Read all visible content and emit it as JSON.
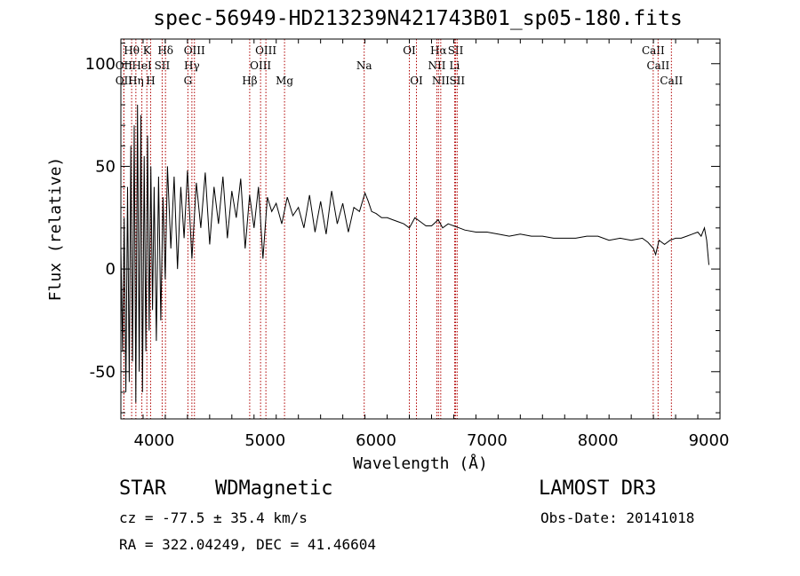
{
  "chart_data": {
    "type": "line",
    "title": "spec-56949-HD213239N421743B01_sp05-180.fits",
    "xlabel": "Wavelength (Å)",
    "ylabel": "Flux (relative)",
    "xlim": [
      3700,
      9100
    ],
    "ylim": [
      -73,
      112
    ],
    "xticks": [
      4000,
      5000,
      6000,
      7000,
      8000,
      9000
    ],
    "yticks": [
      -50,
      0,
      50,
      100
    ],
    "grid": false,
    "series": [
      {
        "x": [
          3700,
          3715,
          3730,
          3745,
          3760,
          3775,
          3790,
          3805,
          3820,
          3835,
          3850,
          3865,
          3880,
          3895,
          3910,
          3925,
          3940,
          3955,
          3970,
          3985,
          4000,
          4020,
          4040,
          4060,
          4080,
          4100,
          4120,
          4150,
          4180,
          4210,
          4240,
          4270,
          4300,
          4340,
          4380,
          4420,
          4460,
          4500,
          4540,
          4580,
          4620,
          4660,
          4700,
          4740,
          4780,
          4820,
          4860,
          4900,
          4940,
          4980,
          5020,
          5060,
          5100,
          5150,
          5200,
          5250,
          5300,
          5350,
          5400,
          5450,
          5500,
          5550,
          5600,
          5650,
          5700,
          5750,
          5800,
          5850,
          5900,
          5930,
          5960,
          6000,
          6050,
          6100,
          6150,
          6200,
          6250,
          6300,
          6350,
          6400,
          6450,
          6500,
          6560,
          6600,
          6650,
          6700,
          6750,
          6800,
          6900,
          7000,
          7100,
          7200,
          7300,
          7400,
          7500,
          7600,
          7700,
          7800,
          7900,
          8000,
          8100,
          8200,
          8300,
          8400,
          8450,
          8500,
          8520,
          8550,
          8600,
          8650,
          8700,
          8750,
          8800,
          8850,
          8900,
          8930,
          8960,
          8980,
          9000
        ],
        "y": [
          10,
          -40,
          25,
          -60,
          40,
          -55,
          60,
          -45,
          70,
          -65,
          80,
          -50,
          75,
          -60,
          55,
          -40,
          65,
          -30,
          50,
          -20,
          40,
          -35,
          45,
          -25,
          35,
          -5,
          50,
          10,
          45,
          0,
          40,
          15,
          48,
          5,
          42,
          20,
          47,
          12,
          40,
          22,
          45,
          15,
          38,
          25,
          44,
          10,
          36,
          20,
          40,
          5,
          35,
          28,
          32,
          22,
          35,
          26,
          30,
          20,
          36,
          18,
          33,
          17,
          38,
          22,
          32,
          18,
          30,
          28,
          37,
          33,
          28,
          27,
          25,
          25,
          24,
          23,
          22,
          20,
          25,
          23,
          21,
          21,
          24,
          20,
          22,
          21,
          20,
          19,
          18,
          18,
          17,
          16,
          17,
          16,
          16,
          15,
          15,
          15,
          16,
          16,
          14,
          15,
          14,
          15,
          13,
          10,
          7,
          14,
          12,
          14,
          15,
          15,
          16,
          17,
          18,
          16,
          20,
          14,
          2
        ]
      }
    ],
    "line_labels": [
      {
        "name": "Hθ",
        "x": 3797,
        "row": 0
      },
      {
        "name": "K",
        "x": 3934,
        "row": 0
      },
      {
        "name": "Hδ",
        "x": 4102,
        "row": 0
      },
      {
        "name": "OIII",
        "x": 4363,
        "row": 0
      },
      {
        "name": "OIII",
        "x": 5007,
        "row": 0
      },
      {
        "name": "OI",
        "x": 6300,
        "row": 0
      },
      {
        "name": "Hα",
        "x": 6563,
        "row": 0
      },
      {
        "name": "SII",
        "x": 6717,
        "row": 0
      },
      {
        "name": "CaII",
        "x": 8498,
        "row": 0
      },
      {
        "name": "OII",
        "x": 3727,
        "row": 1
      },
      {
        "name": "HeI",
        "x": 3889,
        "row": 1
      },
      {
        "name": "SII",
        "x": 4072,
        "row": 1
      },
      {
        "name": "Hγ",
        "x": 4340,
        "row": 1
      },
      {
        "name": "OIII",
        "x": 4959,
        "row": 1
      },
      {
        "name": "Na",
        "x": 5893,
        "row": 1
      },
      {
        "name": "NII",
        "x": 6548,
        "row": 1
      },
      {
        "name": "Li",
        "x": 6708,
        "row": 1
      },
      {
        "name": "CaII",
        "x": 8542,
        "row": 1
      },
      {
        "name": "OII",
        "x": 3727,
        "row": 2
      },
      {
        "name": "Hη",
        "x": 3835,
        "row": 2
      },
      {
        "name": "H",
        "x": 3968,
        "row": 2
      },
      {
        "name": "G",
        "x": 4304,
        "row": 2
      },
      {
        "name": "Hβ",
        "x": 4861,
        "row": 2
      },
      {
        "name": "Mg",
        "x": 5175,
        "row": 2
      },
      {
        "name": "OI",
        "x": 6364,
        "row": 2
      },
      {
        "name": "NII",
        "x": 6583,
        "row": 2
      },
      {
        "name": "SII",
        "x": 6731,
        "row": 2
      },
      {
        "name": "CaII",
        "x": 8662,
        "row": 2
      }
    ]
  },
  "footer": {
    "class_label": "STAR",
    "subclass_label": "WDMagnetic",
    "survey": "LAMOST DR3",
    "cz": "cz = -77.5 ± 35.4 km/s",
    "obs_date": "Obs-Date: 20141018",
    "coords": "RA = 322.04249, DEC =  41.46604"
  }
}
